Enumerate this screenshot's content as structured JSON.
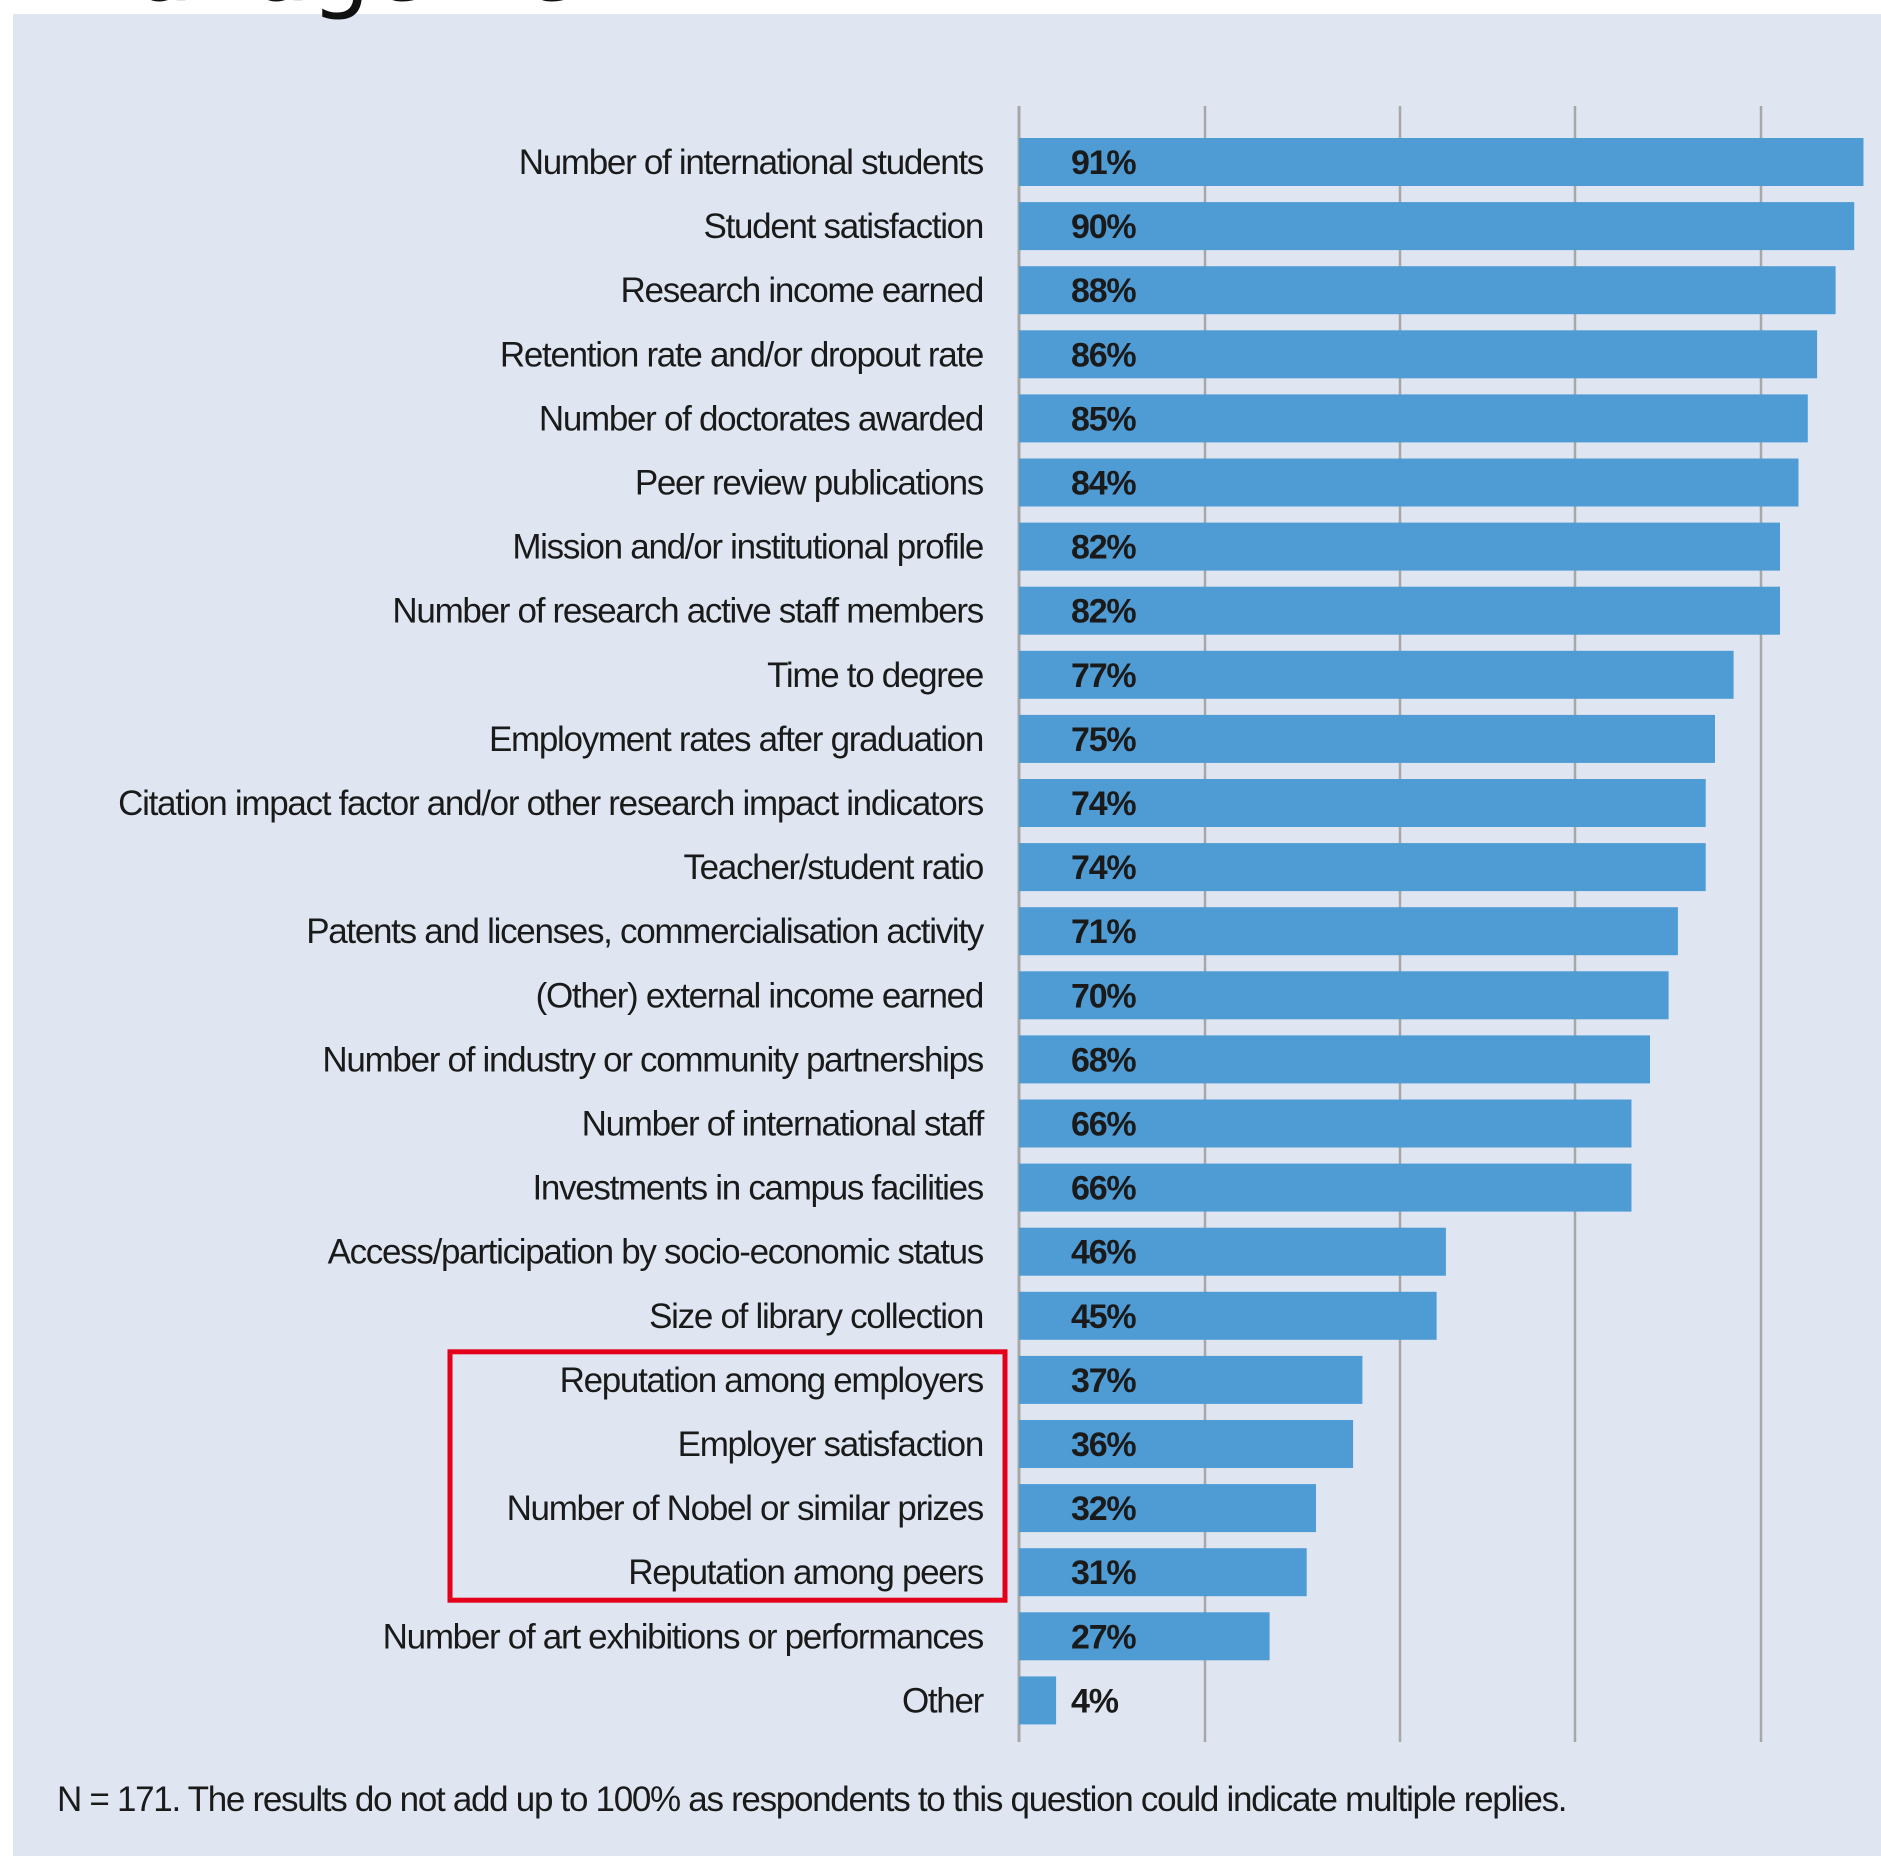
{
  "page_title": "Management",
  "footnote": "N = 171. The results do not add up to 100% as respondents to this question could indicate multiple replies.",
  "colors": {
    "bar": "#4f9bd4",
    "background": "#dfe6f1",
    "grid": "#a7a7a7",
    "label_text": "#1a1a1a",
    "highlight_box": "#e4001b"
  },
  "chart_data": {
    "type": "bar",
    "orientation": "horizontal",
    "title": "",
    "xlabel": "",
    "ylabel": "",
    "xlim": [
      0,
      100
    ],
    "grid": true,
    "value_suffix": "%",
    "categories": [
      "Number of international students",
      "Student satisfaction",
      "Research income earned",
      "Retention rate and/or dropout rate",
      "Number of doctorates awarded",
      "Peer review publications",
      "Mission and/or institutional profile",
      "Number of research active staff members",
      "Time to degree",
      "Employment rates after graduation",
      "Citation impact factor and/or other research impact indicators",
      "Teacher/student ratio",
      "Patents and licenses, commercialisation activity",
      "(Other) external income earned",
      "Number of industry or community partnerships",
      "Number of international staff",
      "Investments in campus facilities",
      "Access/participation by socio-economic status",
      "Size of library collection",
      "Reputation among employers",
      "Employer satisfaction",
      "Number of Nobel or similar prizes",
      "Reputation among peers",
      "Number of art exhibitions or performances",
      "Other"
    ],
    "values": [
      91,
      90,
      88,
      86,
      85,
      84,
      82,
      82,
      77,
      75,
      74,
      74,
      71,
      70,
      68,
      66,
      66,
      46,
      45,
      37,
      36,
      32,
      31,
      27,
      4
    ],
    "highlighted_categories": [
      "Reputation among employers",
      "Employer satisfaction",
      "Number of Nobel or similar prizes",
      "Reputation among peers"
    ]
  }
}
